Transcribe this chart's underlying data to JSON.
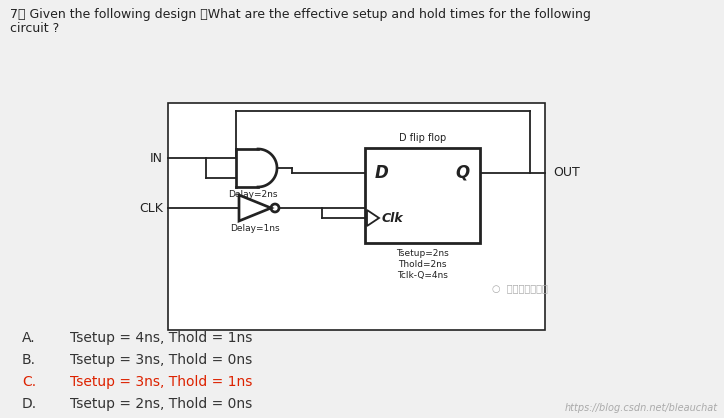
{
  "bg_color": "#f0f0f0",
  "title_line1": "7、 Given the following design ，What are the effective setup and hold times for the following",
  "title_line2": "circuit ?",
  "in_label": "IN",
  "clk_label": "CLK",
  "out_label": "OUT",
  "dff_label": "D flip flop",
  "d_label": "D",
  "q_label": "Q",
  "clk_pin_label": "Clk",
  "delay_and": "Delay=2ns",
  "delay_buf": "Delay=1ns",
  "dff_param1": "Tsetup=2ns",
  "dff_param2": "Thold=2ns",
  "dff_param3": "Tclk-Q=4ns",
  "watermark": "数字芯片实验室",
  "url": "https://blog.csdn.net/bleauchat",
  "choices": [
    {
      "label": "A.",
      "text": "Tsetup = 4ns, Thold = 1ns",
      "color": "#333333"
    },
    {
      "label": "B.",
      "text": "Tsetup = 3ns, Thold = 0ns",
      "color": "#333333"
    },
    {
      "label": "C.",
      "text": "Tsetup = 3ns, Thold = 1ns",
      "color": "#dd2200"
    },
    {
      "label": "D.",
      "text": "Tsetup = 2ns, Thold = 0ns",
      "color": "#333333"
    }
  ],
  "text_color": "#222222",
  "line_color": "#222222"
}
